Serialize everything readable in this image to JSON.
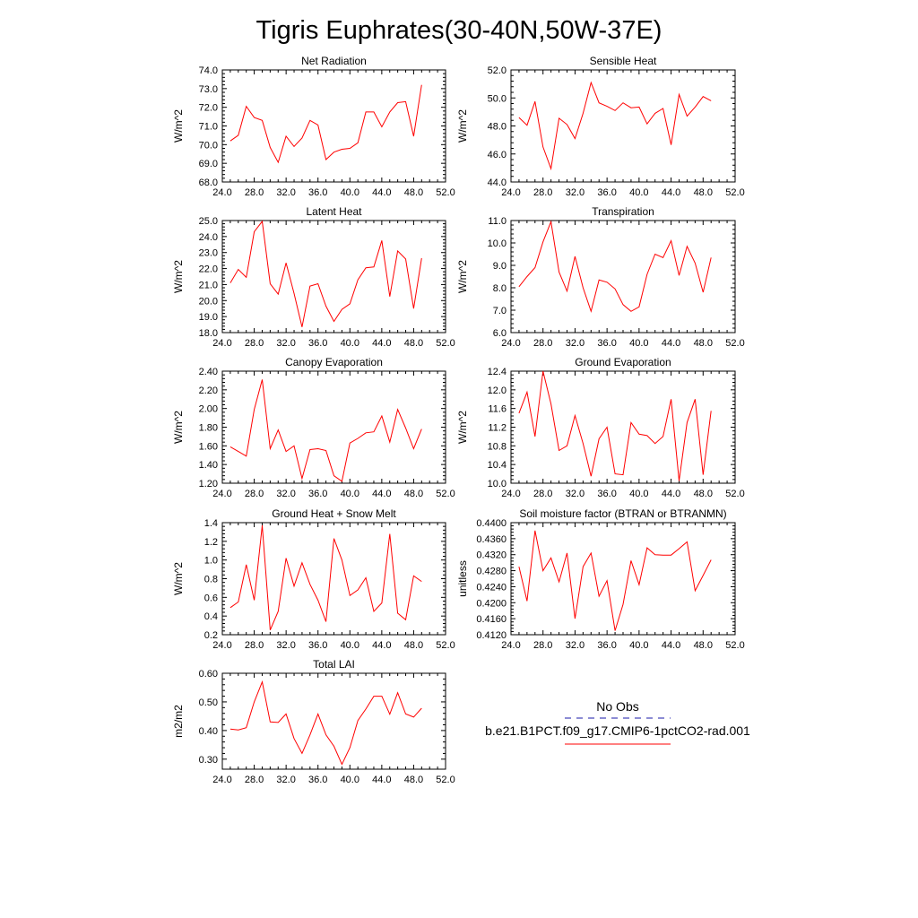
{
  "title": "Tigris Euphrates(30-40N,50W-37E)",
  "legend": {
    "obs_label": "No Obs",
    "obs_color": "#1a1aa8",
    "model_label": "b.e21.B1PCT.f09_g17.CMIP6-1pctCO2-rad.001",
    "model_color": "#ff0000"
  },
  "chart_data": [
    {
      "type": "line",
      "title": "Net Radiation",
      "ylabel": "W/m^2",
      "xlim": [
        24,
        52
      ],
      "ylim": [
        68,
        74
      ],
      "xticks": [
        "24.0",
        "28.0",
        "32.0",
        "36.0",
        "40.0",
        "44.0",
        "48.0",
        "52.0"
      ],
      "yticks": [
        "68.0",
        "69.0",
        "70.0",
        "71.0",
        "72.0",
        "73.0",
        "74.0"
      ],
      "x": [
        25,
        26,
        27,
        28,
        29,
        30,
        31,
        32,
        33,
        34,
        35,
        36,
        37,
        38,
        39,
        40,
        41,
        42,
        43,
        44,
        45,
        46,
        47,
        48,
        49
      ],
      "values": [
        70.2,
        70.5,
        72.05,
        71.45,
        71.3,
        69.85,
        69.05,
        70.45,
        69.9,
        70.35,
        71.3,
        71.05,
        69.2,
        69.6,
        69.75,
        69.8,
        70.1,
        71.75,
        71.75,
        70.95,
        71.75,
        72.25,
        72.3,
        70.45,
        73.2
      ]
    },
    {
      "type": "line",
      "title": "Sensible Heat",
      "ylabel": "W/m^2",
      "xlim": [
        24,
        52
      ],
      "ylim": [
        44,
        52
      ],
      "xticks": [
        "24.0",
        "28.0",
        "32.0",
        "36.0",
        "40.0",
        "44.0",
        "48.0",
        "52.0"
      ],
      "yticks": [
        "44.0",
        "46.0",
        "48.0",
        "50.0",
        "52.0"
      ],
      "x": [
        25,
        26,
        27,
        28,
        29,
        30,
        31,
        32,
        33,
        34,
        35,
        36,
        37,
        38,
        39,
        40,
        41,
        42,
        43,
        44,
        45,
        46,
        47,
        48,
        49
      ],
      "values": [
        48.6,
        48.05,
        49.75,
        46.5,
        44.95,
        48.55,
        48.1,
        47.1,
        48.9,
        51.1,
        49.65,
        49.4,
        49.1,
        49.65,
        49.3,
        49.35,
        48.15,
        48.9,
        49.25,
        46.65,
        50.25,
        48.7,
        49.35,
        50.1,
        49.8
      ]
    },
    {
      "type": "line",
      "title": "Latent Heat",
      "ylabel": "W/m^2",
      "xlim": [
        24,
        52
      ],
      "ylim": [
        18,
        25
      ],
      "xticks": [
        "24.0",
        "28.0",
        "32.0",
        "36.0",
        "40.0",
        "44.0",
        "48.0",
        "52.0"
      ],
      "yticks": [
        "18.0",
        "19.0",
        "20.0",
        "21.0",
        "22.0",
        "23.0",
        "24.0",
        "25.0"
      ],
      "x": [
        25,
        26,
        27,
        28,
        29,
        30,
        31,
        32,
        33,
        34,
        35,
        36,
        37,
        38,
        39,
        40,
        41,
        42,
        43,
        44,
        45,
        46,
        47,
        48,
        49
      ],
      "values": [
        21.1,
        21.95,
        21.45,
        24.3,
        24.95,
        21.05,
        20.4,
        22.35,
        20.45,
        18.35,
        20.9,
        21.05,
        19.65,
        18.7,
        19.45,
        19.8,
        21.3,
        22.05,
        22.1,
        23.75,
        20.25,
        23.1,
        22.6,
        19.5,
        22.65
      ]
    },
    {
      "type": "line",
      "title": "Transpiration",
      "ylabel": "W/m^2",
      "xlim": [
        24,
        52
      ],
      "ylim": [
        6,
        11
      ],
      "xticks": [
        "24.0",
        "28.0",
        "32.0",
        "36.0",
        "40.0",
        "44.0",
        "48.0",
        "52.0"
      ],
      "yticks": [
        "6.0",
        "7.0",
        "8.0",
        "9.0",
        "10.0",
        "11.0"
      ],
      "x": [
        25,
        26,
        27,
        28,
        29,
        30,
        31,
        32,
        33,
        34,
        35,
        36,
        37,
        38,
        39,
        40,
        41,
        42,
        43,
        44,
        45,
        46,
        47,
        48,
        49
      ],
      "values": [
        8.05,
        8.5,
        8.9,
        10.05,
        10.95,
        8.7,
        7.85,
        9.4,
        8.0,
        6.95,
        8.35,
        8.25,
        7.95,
        7.25,
        6.95,
        7.15,
        8.6,
        9.5,
        9.35,
        10.1,
        8.55,
        9.85,
        9.1,
        7.8,
        9.35
      ]
    },
    {
      "type": "line",
      "title": "Canopy Evaporation",
      "ylabel": "W/m^2",
      "xlim": [
        24,
        52
      ],
      "ylim": [
        1.2,
        2.4
      ],
      "xticks": [
        "24.0",
        "28.0",
        "32.0",
        "36.0",
        "40.0",
        "44.0",
        "48.0",
        "52.0"
      ],
      "yticks": [
        "1.20",
        "1.40",
        "1.60",
        "1.80",
        "2.00",
        "2.20",
        "2.40"
      ],
      "x": [
        25,
        26,
        27,
        28,
        29,
        30,
        31,
        32,
        33,
        34,
        35,
        36,
        37,
        38,
        39,
        40,
        41,
        42,
        43,
        44,
        45,
        46,
        47,
        48,
        49
      ],
      "values": [
        1.59,
        1.54,
        1.49,
        1.99,
        2.31,
        1.57,
        1.77,
        1.54,
        1.6,
        1.25,
        1.56,
        1.57,
        1.55,
        1.28,
        1.22,
        1.63,
        1.68,
        1.74,
        1.75,
        1.92,
        1.64,
        1.99,
        1.79,
        1.57,
        1.78
      ]
    },
    {
      "type": "line",
      "title": "Ground Evaporation",
      "ylabel": "W/m^2",
      "xlim": [
        24,
        52
      ],
      "ylim": [
        10.0,
        12.4
      ],
      "xticks": [
        "24.0",
        "28.0",
        "32.0",
        "36.0",
        "40.0",
        "44.0",
        "48.0",
        "52.0"
      ],
      "yticks": [
        "10.0",
        "10.4",
        "10.8",
        "11.2",
        "11.6",
        "12.0",
        "12.4"
      ],
      "x": [
        25,
        26,
        27,
        28,
        29,
        30,
        31,
        32,
        33,
        34,
        35,
        36,
        37,
        38,
        39,
        40,
        41,
        42,
        43,
        44,
        45,
        46,
        47,
        48,
        49
      ],
      "values": [
        11.5,
        11.95,
        11.0,
        12.4,
        11.7,
        10.7,
        10.8,
        11.45,
        10.85,
        10.15,
        10.95,
        11.2,
        10.2,
        10.18,
        11.3,
        11.05,
        11.02,
        10.85,
        11.0,
        11.8,
        10.05,
        11.3,
        11.8,
        10.18,
        11.55
      ]
    },
    {
      "type": "line",
      "title": "Ground Heat + Snow Melt",
      "ylabel": "W/m^2",
      "xlim": [
        24,
        52
      ],
      "ylim": [
        0.2,
        1.4
      ],
      "xticks": [
        "24.0",
        "28.0",
        "32.0",
        "36.0",
        "40.0",
        "44.0",
        "48.0",
        "52.0"
      ],
      "yticks": [
        "0.2",
        "0.4",
        "0.6",
        "0.8",
        "1.0",
        "1.2",
        "1.4"
      ],
      "x": [
        25,
        26,
        27,
        28,
        29,
        30,
        31,
        32,
        33,
        34,
        35,
        36,
        37,
        38,
        39,
        40,
        41,
        42,
        43,
        44,
        45,
        46,
        47,
        48,
        49
      ],
      "values": [
        0.49,
        0.55,
        0.95,
        0.57,
        1.37,
        0.25,
        0.45,
        1.02,
        0.72,
        0.97,
        0.74,
        0.57,
        0.34,
        1.23,
        1.0,
        0.62,
        0.68,
        0.81,
        0.45,
        0.54,
        1.28,
        0.43,
        0.36,
        0.83,
        0.77
      ]
    },
    {
      "type": "line",
      "title": "Soil moisture factor (BTRAN or BTRANMN)",
      "ylabel": "unitless",
      "xlim": [
        24,
        52
      ],
      "ylim": [
        0.412,
        0.44
      ],
      "xticks": [
        "24.0",
        "28.0",
        "32.0",
        "36.0",
        "40.0",
        "44.0",
        "48.0",
        "52.0"
      ],
      "yticks": [
        "0.4120",
        "0.4160",
        "0.4200",
        "0.4240",
        "0.4280",
        "0.4320",
        "0.4360",
        "0.4400"
      ],
      "x": [
        25,
        26,
        27,
        28,
        29,
        30,
        31,
        32,
        33,
        34,
        35,
        36,
        37,
        38,
        39,
        40,
        41,
        42,
        43,
        44,
        45,
        46,
        47,
        48,
        49
      ],
      "values": [
        0.429,
        0.4204,
        0.438,
        0.428,
        0.4312,
        0.4252,
        0.4324,
        0.416,
        0.429,
        0.4324,
        0.4216,
        0.4255,
        0.413,
        0.4196,
        0.4305,
        0.4245,
        0.4337,
        0.432,
        0.4319,
        0.4319,
        0.4335,
        0.4352,
        0.423,
        0.4268,
        0.4307
      ]
    },
    {
      "type": "line",
      "title": "Total LAI",
      "ylabel": "m2/m2",
      "xlim": [
        24,
        52
      ],
      "ylim": [
        0.265,
        0.6
      ],
      "xticks": [
        "24.0",
        "28.0",
        "32.0",
        "36.0",
        "40.0",
        "44.0",
        "48.0",
        "52.0"
      ],
      "yticks": [
        "0.30",
        "0.40",
        "0.50",
        "0.60"
      ],
      "ytick_values": [
        0.3,
        0.4,
        0.5,
        0.6
      ],
      "x": [
        25,
        26,
        27,
        28,
        29,
        30,
        31,
        32,
        33,
        34,
        35,
        36,
        37,
        38,
        39,
        40,
        41,
        42,
        43,
        44,
        45,
        46,
        47,
        48,
        49
      ],
      "values": [
        0.405,
        0.402,
        0.41,
        0.5,
        0.57,
        0.43,
        0.428,
        0.458,
        0.372,
        0.32,
        0.385,
        0.458,
        0.385,
        0.345,
        0.282,
        0.34,
        0.435,
        0.475,
        0.52,
        0.52,
        0.457,
        0.532,
        0.458,
        0.447,
        0.478
      ]
    }
  ]
}
